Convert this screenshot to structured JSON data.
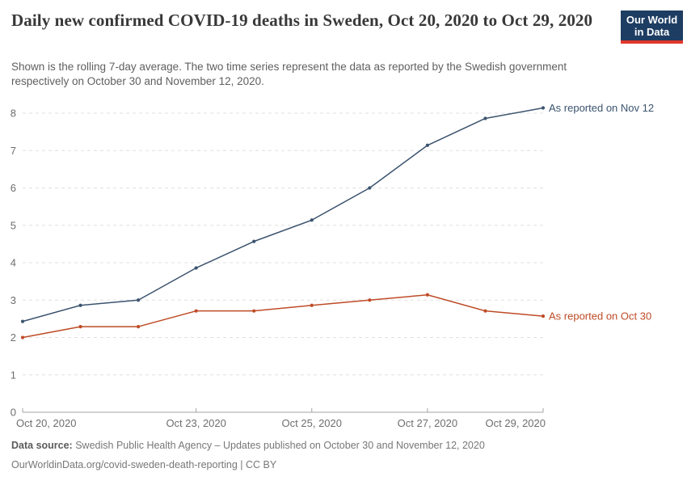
{
  "header": {
    "title": "Daily new confirmed COVID-19 deaths in Sweden, Oct 20, 2020 to Oct 29, 2020",
    "subtitle": "Shown is the rolling 7-day average. The two time series represent the data as reported by the Swedish government respectively on October 30 and November 12, 2020.",
    "logo": {
      "line1": "Our World",
      "line2": "in Data"
    }
  },
  "colors": {
    "series_nov12": "#3b536e",
    "series_oct30": "#be4b26",
    "grid": "#e0e0e0",
    "axis": "#a3a3a3",
    "tick_text": "#6e6e6e",
    "logo_bg": "#1d3d63",
    "logo_stripe": "#e0372b"
  },
  "chart_data": {
    "type": "line",
    "title": "Daily new confirmed COVID-19 deaths in Sweden, Oct 20, 2020 to Oct 29, 2020",
    "x": [
      "Oct 20, 2020",
      "Oct 21, 2020",
      "Oct 22, 2020",
      "Oct 23, 2020",
      "Oct 24, 2020",
      "Oct 25, 2020",
      "Oct 26, 2020",
      "Oct 27, 2020",
      "Oct 28, 2020",
      "Oct 29, 2020"
    ],
    "series": [
      {
        "name": "As reported on Nov 12",
        "color": "#3b536e",
        "values": [
          2.43,
          2.86,
          3.0,
          3.86,
          4.57,
          5.14,
          6.0,
          7.14,
          7.86,
          8.14
        ]
      },
      {
        "name": "As reported on Oct 30",
        "color": "#be4b26",
        "values": [
          2.0,
          2.29,
          2.29,
          2.71,
          2.71,
          2.86,
          3.0,
          3.14,
          2.71,
          2.57
        ]
      }
    ],
    "x_tick_indices": [
      0,
      3,
      5,
      7,
      9
    ],
    "x_tick_labels": [
      "Oct 20, 2020",
      "Oct 23, 2020",
      "Oct 25, 2020",
      "Oct 27, 2020",
      "Oct 29, 2020"
    ],
    "ylim": [
      0,
      8
    ],
    "yticks": [
      0,
      1,
      2,
      3,
      4,
      5,
      6,
      7,
      8
    ],
    "grid": true,
    "legend_position": "end-of-line"
  },
  "footer": {
    "source_label": "Data source:",
    "source_text": "Swedish Public Health Agency – Updates published on October 30 and November 12, 2020",
    "url_line": "OurWorldinData.org/covid-sweden-death-reporting | CC BY"
  }
}
